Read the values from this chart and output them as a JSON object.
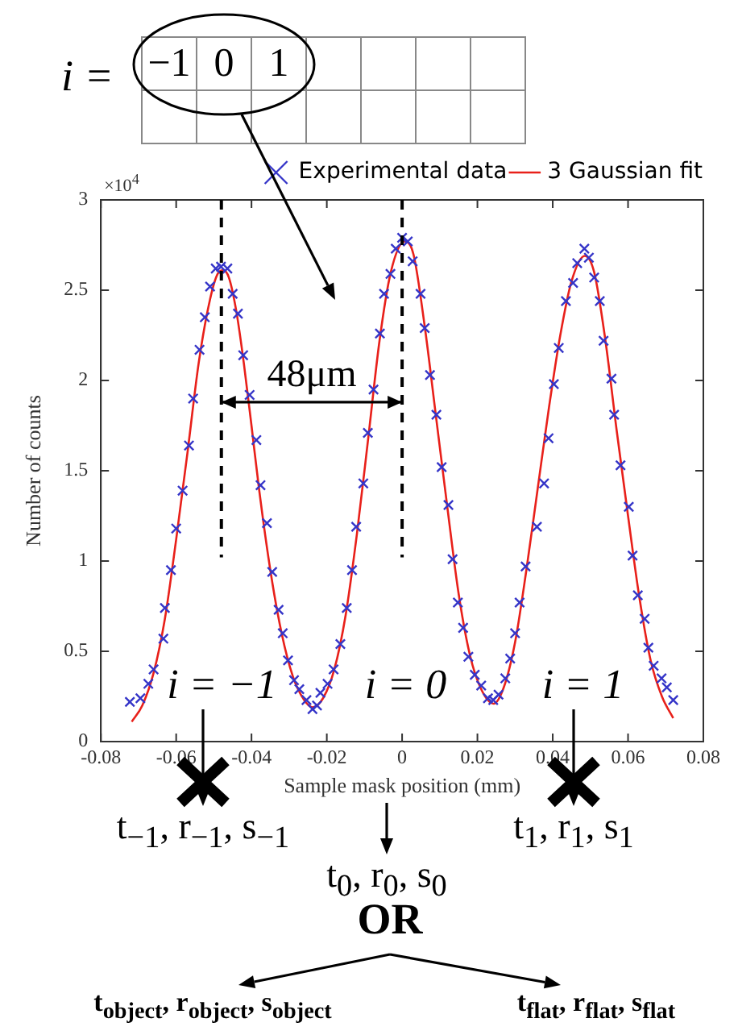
{
  "chart_data": {
    "type": "scatter",
    "xlabel": "Sample mask position (mm)",
    "ylabel": "Number of counts",
    "xlim": [
      -0.08,
      0.08
    ],
    "xticks": [
      -0.08,
      -0.06,
      -0.04,
      -0.02,
      0,
      0.02,
      0.04,
      0.06,
      0.08
    ],
    "ylim": [
      0,
      3
    ],
    "yticks": [
      0,
      0.5,
      1,
      1.5,
      2,
      2.5,
      3
    ],
    "grid": false,
    "legend": "top right",
    "series": [
      {
        "name": "Experimental data",
        "type": "scatter",
        "color": "#3535c8",
        "marker": "cross",
        "x": [
          -0.0723,
          -0.0695,
          -0.0674,
          -0.066,
          -0.0634,
          -0.063,
          -0.0614,
          -0.06,
          -0.0583,
          -0.0566,
          -0.0555,
          -0.0538,
          -0.0524,
          -0.051,
          -0.0495,
          -0.0481,
          -0.0464,
          -0.045,
          -0.0436,
          -0.0422,
          -0.0405,
          -0.0387,
          -0.0376,
          -0.0359,
          -0.0345,
          -0.0328,
          -0.0317,
          -0.0303,
          -0.0287,
          -0.0273,
          -0.0254,
          -0.0238,
          -0.0226,
          -0.0217,
          -0.0198,
          -0.0182,
          -0.0164,
          -0.0147,
          -0.0133,
          -0.0122,
          -0.0103,
          -0.0091,
          -0.0076,
          -0.0059,
          -0.0048,
          -0.0031,
          -0.0017,
          0,
          0.0015,
          0.0028,
          0.0049,
          0.006,
          0.0074,
          0.0091,
          0.0105,
          0.0123,
          0.0134,
          0.0148,
          0.0162,
          0.0176,
          0.0193,
          0.021,
          0.0228,
          0.0242,
          0.0256,
          0.0274,
          0.0287,
          0.03,
          0.0312,
          0.0328,
          0.0358,
          0.0377,
          0.0389,
          0.0403,
          0.0416,
          0.0435,
          0.0454,
          0.0465,
          0.0484,
          0.0496,
          0.051,
          0.0525,
          0.0535,
          0.0556,
          0.0563,
          0.058,
          0.0602,
          0.0612,
          0.0626,
          0.0644,
          0.0654,
          0.0668,
          0.0689,
          0.0703,
          0.072
        ],
        "values": [
          0.22,
          0.24,
          0.32,
          0.4,
          0.57,
          0.74,
          0.95,
          1.18,
          1.39,
          1.64,
          1.9,
          2.17,
          2.35,
          2.52,
          2.62,
          2.63,
          2.62,
          2.48,
          2.37,
          2.14,
          1.92,
          1.67,
          1.42,
          1.21,
          0.94,
          0.73,
          0.6,
          0.45,
          0.34,
          0.29,
          0.23,
          0.18,
          0.2,
          0.27,
          0.32,
          0.4,
          0.54,
          0.74,
          0.95,
          1.19,
          1.43,
          1.71,
          1.95,
          2.26,
          2.48,
          2.59,
          2.73,
          2.79,
          2.77,
          2.66,
          2.48,
          2.29,
          2.03,
          1.81,
          1.52,
          1.31,
          1.01,
          0.77,
          0.63,
          0.47,
          0.37,
          0.31,
          0.24,
          0.23,
          0.26,
          0.35,
          0.46,
          0.6,
          0.77,
          0.97,
          1.19,
          1.43,
          1.68,
          1.98,
          2.18,
          2.44,
          2.54,
          2.65,
          2.73,
          2.68,
          2.57,
          2.44,
          2.22,
          2.01,
          1.81,
          1.53,
          1.3,
          1.03,
          0.81,
          0.68,
          0.52,
          0.42,
          0.35,
          0.3,
          0.23
        ]
      },
      {
        "name": "3 Gaussian fit",
        "type": "line",
        "color": "#e8201a",
        "marker": "none",
        "x": [
          -0.0718,
          -0.069,
          -0.066,
          -0.063,
          -0.06,
          -0.057,
          -0.054,
          -0.051,
          -0.049,
          -0.0475,
          -0.046,
          -0.044,
          -0.042,
          -0.04,
          -0.038,
          -0.035,
          -0.032,
          -0.029,
          -0.026,
          -0.0238,
          -0.021,
          -0.018,
          -0.015,
          -0.012,
          -0.009,
          -0.006,
          -0.003,
          0.0007,
          0.003,
          0.006,
          0.009,
          0.012,
          0.015,
          0.018,
          0.021,
          0.0243,
          0.027,
          0.03,
          0.033,
          0.036,
          0.039,
          0.042,
          0.045,
          0.0485,
          0.051,
          0.054,
          0.057,
          0.06,
          0.063,
          0.066,
          0.069,
          0.072
        ],
        "values": [
          0.11,
          0.2,
          0.38,
          0.68,
          1.12,
          1.6,
          2.1,
          2.45,
          2.59,
          2.61,
          2.57,
          2.38,
          2.09,
          1.75,
          1.4,
          0.95,
          0.6,
          0.36,
          0.23,
          0.19,
          0.24,
          0.4,
          0.7,
          1.15,
          1.68,
          2.22,
          2.6,
          2.77,
          2.7,
          2.3,
          1.8,
          1.3,
          0.82,
          0.48,
          0.29,
          0.21,
          0.3,
          0.55,
          0.95,
          1.4,
          1.85,
          2.25,
          2.55,
          2.69,
          2.6,
          2.22,
          1.72,
          1.25,
          0.8,
          0.45,
          0.25,
          0.13
        ]
      }
    ],
    "ref_lines": [
      {
        "axis": "x",
        "value": -0.048,
        "color": "#000000",
        "line_style": "dashed"
      },
      {
        "axis": "x",
        "value": 0,
        "color": "#000000",
        "line_style": "dashed"
      }
    ],
    "annotations": [
      "×10$^{4}$",
      {
        "text": "48μm",
        "x": -0.048,
        "y": 1.88
      },
      "i = −1",
      "i = 0",
      "i = 1",
      "i =",
      "−1",
      "0",
      "1",
      "t$_{−1}$, r$_{−1}$, s$_{−1}$",
      "t$_{0}$, r$_{0}$, s$_{0}$",
      "t$_{1}$, r$_{1}$, s$_{1}$",
      "OR",
      "t$_{object}$, r$_{object}$, s$_{object}$",
      "t$_{flat}$, r$_{flat}$, s$_{flat}$"
    ]
  }
}
